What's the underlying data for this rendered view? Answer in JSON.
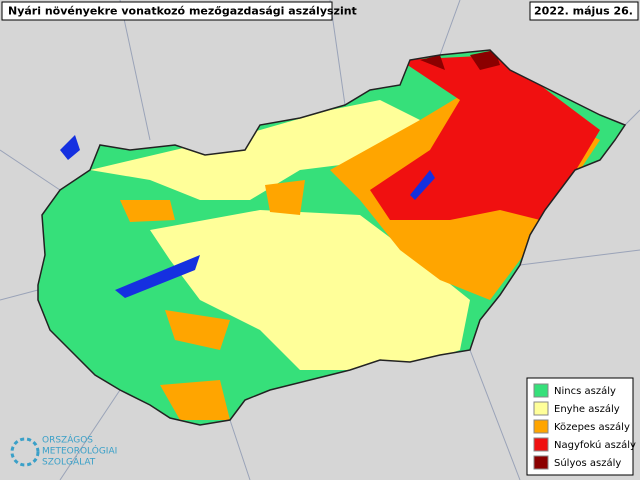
{
  "header": {
    "title": "Nyári növényekre vonatkozó mezőgazdasági aszályszint",
    "date": "2022. május 26."
  },
  "legend": [
    {
      "label": "Nincs aszály",
      "color": "#36e07a"
    },
    {
      "label": "Enyhe aszály",
      "color": "#ffff99"
    },
    {
      "label": "Közepes aszály",
      "color": "#ffa500"
    },
    {
      "label": "Nagyfokú aszály",
      "color": "#f01010"
    },
    {
      "label": "Súlyos aszály",
      "color": "#8b0000"
    }
  ],
  "logo": [
    "ORSZÁGOS",
    "METEOROLÓGIAI",
    "SZOLGÁLAT"
  ]
}
